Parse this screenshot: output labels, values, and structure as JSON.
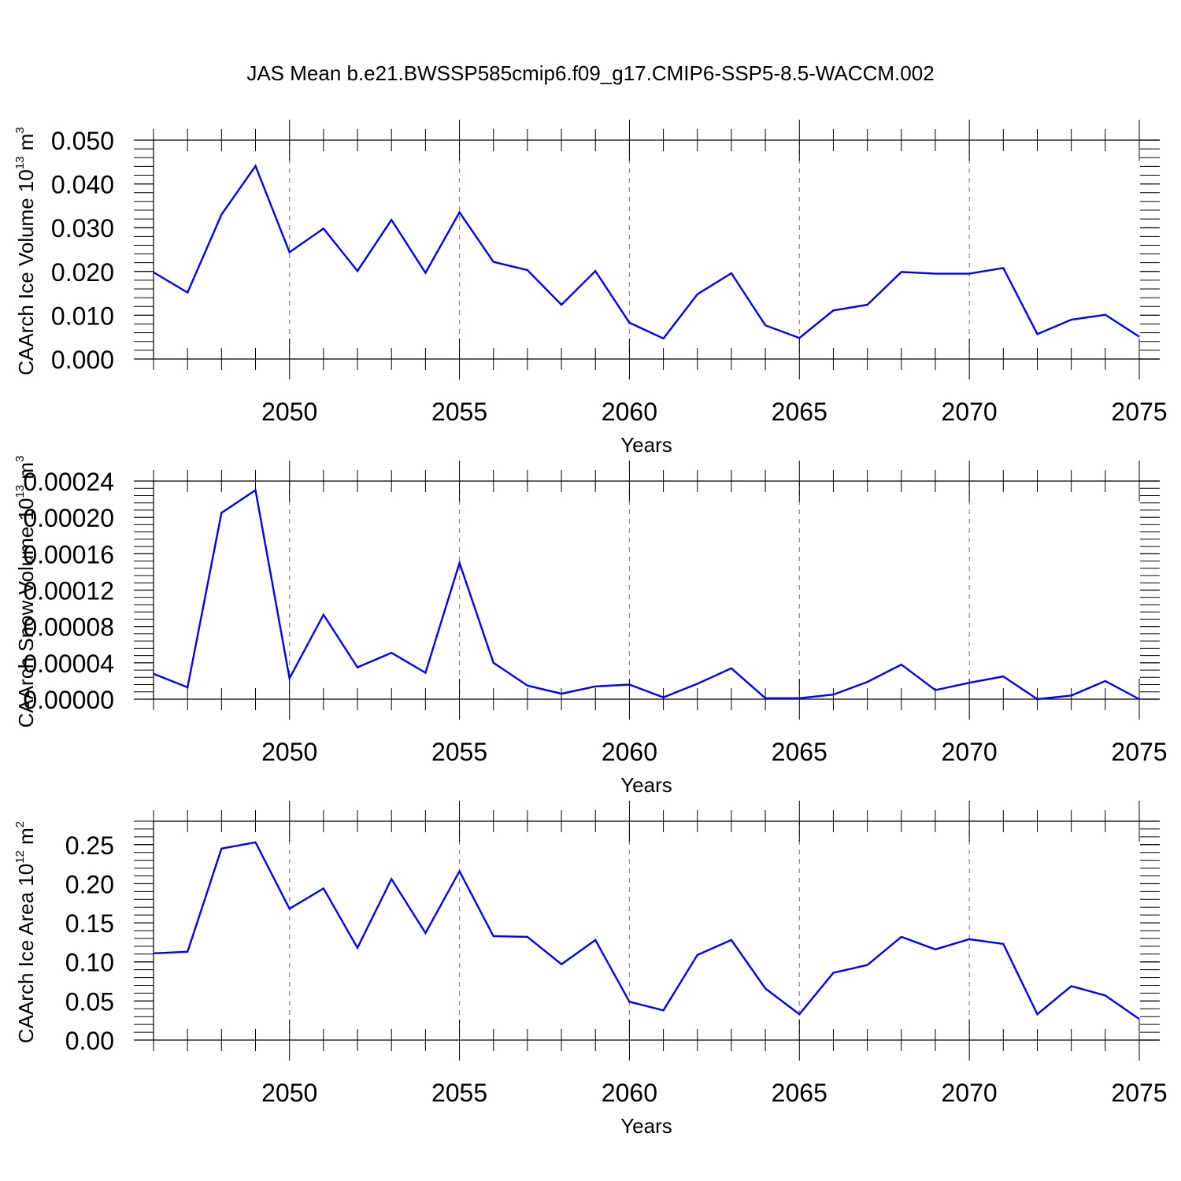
{
  "title": "JAS Mean b.e21.BWSSP585cmip6.f09_g17.CMIP6-SSP5-8.5-WACCM.002",
  "series_color": "#0000ff",
  "chart_data": [
    {
      "type": "line",
      "ylabel": {
        "base": "CAArch Ice Volume 10",
        "exp": "13",
        "unit": " m",
        "unit_exp": "3"
      },
      "xlabel": "Years",
      "xlim": [
        2046,
        2075
      ],
      "ylim": [
        0.0,
        0.05
      ],
      "x_ticks": [
        2050,
        2055,
        2060,
        2065,
        2070,
        2075
      ],
      "y_ticks": [
        "0.000",
        "0.010",
        "0.020",
        "0.030",
        "0.040",
        "0.050"
      ],
      "y_tick_values": [
        0.0,
        0.01,
        0.02,
        0.03,
        0.04,
        0.05
      ],
      "x": [
        2046,
        2047,
        2048,
        2049,
        2050,
        2051,
        2052,
        2053,
        2054,
        2055,
        2056,
        2057,
        2058,
        2059,
        2060,
        2061,
        2062,
        2063,
        2064,
        2065,
        2066,
        2067,
        2068,
        2069,
        2070,
        2071,
        2072,
        2073,
        2074,
        2075
      ],
      "values": [
        0.0198,
        0.0152,
        0.033,
        0.0441,
        0.0244,
        0.0298,
        0.0201,
        0.0318,
        0.0197,
        0.0335,
        0.0222,
        0.0203,
        0.0124,
        0.0201,
        0.0083,
        0.0047,
        0.0148,
        0.0196,
        0.0077,
        0.0048,
        0.0111,
        0.0124,
        0.0199,
        0.0195,
        0.0195,
        0.0208,
        0.0057,
        0.009,
        0.0101,
        0.0051
      ]
    },
    {
      "type": "line",
      "ylabel": {
        "base": "CAArch Snow Volume 10",
        "exp": "13",
        "unit": " m",
        "unit_exp": "3"
      },
      "xlabel": "Years",
      "xlim": [
        2046,
        2075
      ],
      "ylim": [
        0.0,
        0.00024
      ],
      "x_ticks": [
        2050,
        2055,
        2060,
        2065,
        2070,
        2075
      ],
      "y_ticks": [
        "0.00000",
        "0.00004",
        "0.00008",
        "0.00012",
        "0.00016",
        "0.00020",
        "0.00024"
      ],
      "y_tick_values": [
        0.0,
        4e-05,
        8e-05,
        0.00012,
        0.00016,
        0.0002,
        0.00024
      ],
      "x": [
        2046,
        2047,
        2048,
        2049,
        2050,
        2051,
        2052,
        2053,
        2054,
        2055,
        2056,
        2057,
        2058,
        2059,
        2060,
        2061,
        2062,
        2063,
        2064,
        2065,
        2066,
        2067,
        2068,
        2069,
        2070,
        2071,
        2072,
        2073,
        2074,
        2075
      ],
      "values": [
        2.8e-05,
        1.3e-05,
        0.000205,
        0.00023,
        2.3e-05,
        9.3e-05,
        3.5e-05,
        5.1e-05,
        2.9e-05,
        0.00015,
        4e-05,
        1.5e-05,
        6e-06,
        1.4e-05,
        1.6e-05,
        2e-06,
        1.7e-05,
        3.4e-05,
        1e-06,
        1e-06,
        5e-06,
        1.9e-05,
        3.8e-05,
        1e-05,
        1.8e-05,
        2.5e-05,
        0.0,
        4e-06,
        2e-05,
        0.0
      ]
    },
    {
      "type": "line",
      "ylabel": {
        "base": "CAArch Ice Area 10",
        "exp": "12",
        "unit": " m",
        "unit_exp": "2"
      },
      "xlabel": "Years",
      "xlim": [
        2046,
        2075
      ],
      "ylim": [
        0.0,
        0.28
      ],
      "x_ticks": [
        2050,
        2055,
        2060,
        2065,
        2070,
        2075
      ],
      "y_ticks": [
        "0.00",
        "0.05",
        "0.10",
        "0.15",
        "0.20",
        "0.25"
      ],
      "y_tick_values": [
        0.0,
        0.05,
        0.1,
        0.15,
        0.2,
        0.25
      ],
      "x": [
        2046,
        2047,
        2048,
        2049,
        2050,
        2051,
        2052,
        2053,
        2054,
        2055,
        2056,
        2057,
        2058,
        2059,
        2060,
        2061,
        2062,
        2063,
        2064,
        2065,
        2066,
        2067,
        2068,
        2069,
        2070,
        2071,
        2072,
        2073,
        2074,
        2075
      ],
      "values": [
        0.111,
        0.113,
        0.245,
        0.253,
        0.168,
        0.194,
        0.118,
        0.206,
        0.137,
        0.216,
        0.133,
        0.132,
        0.097,
        0.128,
        0.049,
        0.038,
        0.109,
        0.128,
        0.066,
        0.033,
        0.086,
        0.096,
        0.132,
        0.116,
        0.129,
        0.123,
        0.033,
        0.069,
        0.057,
        0.027
      ]
    }
  ]
}
